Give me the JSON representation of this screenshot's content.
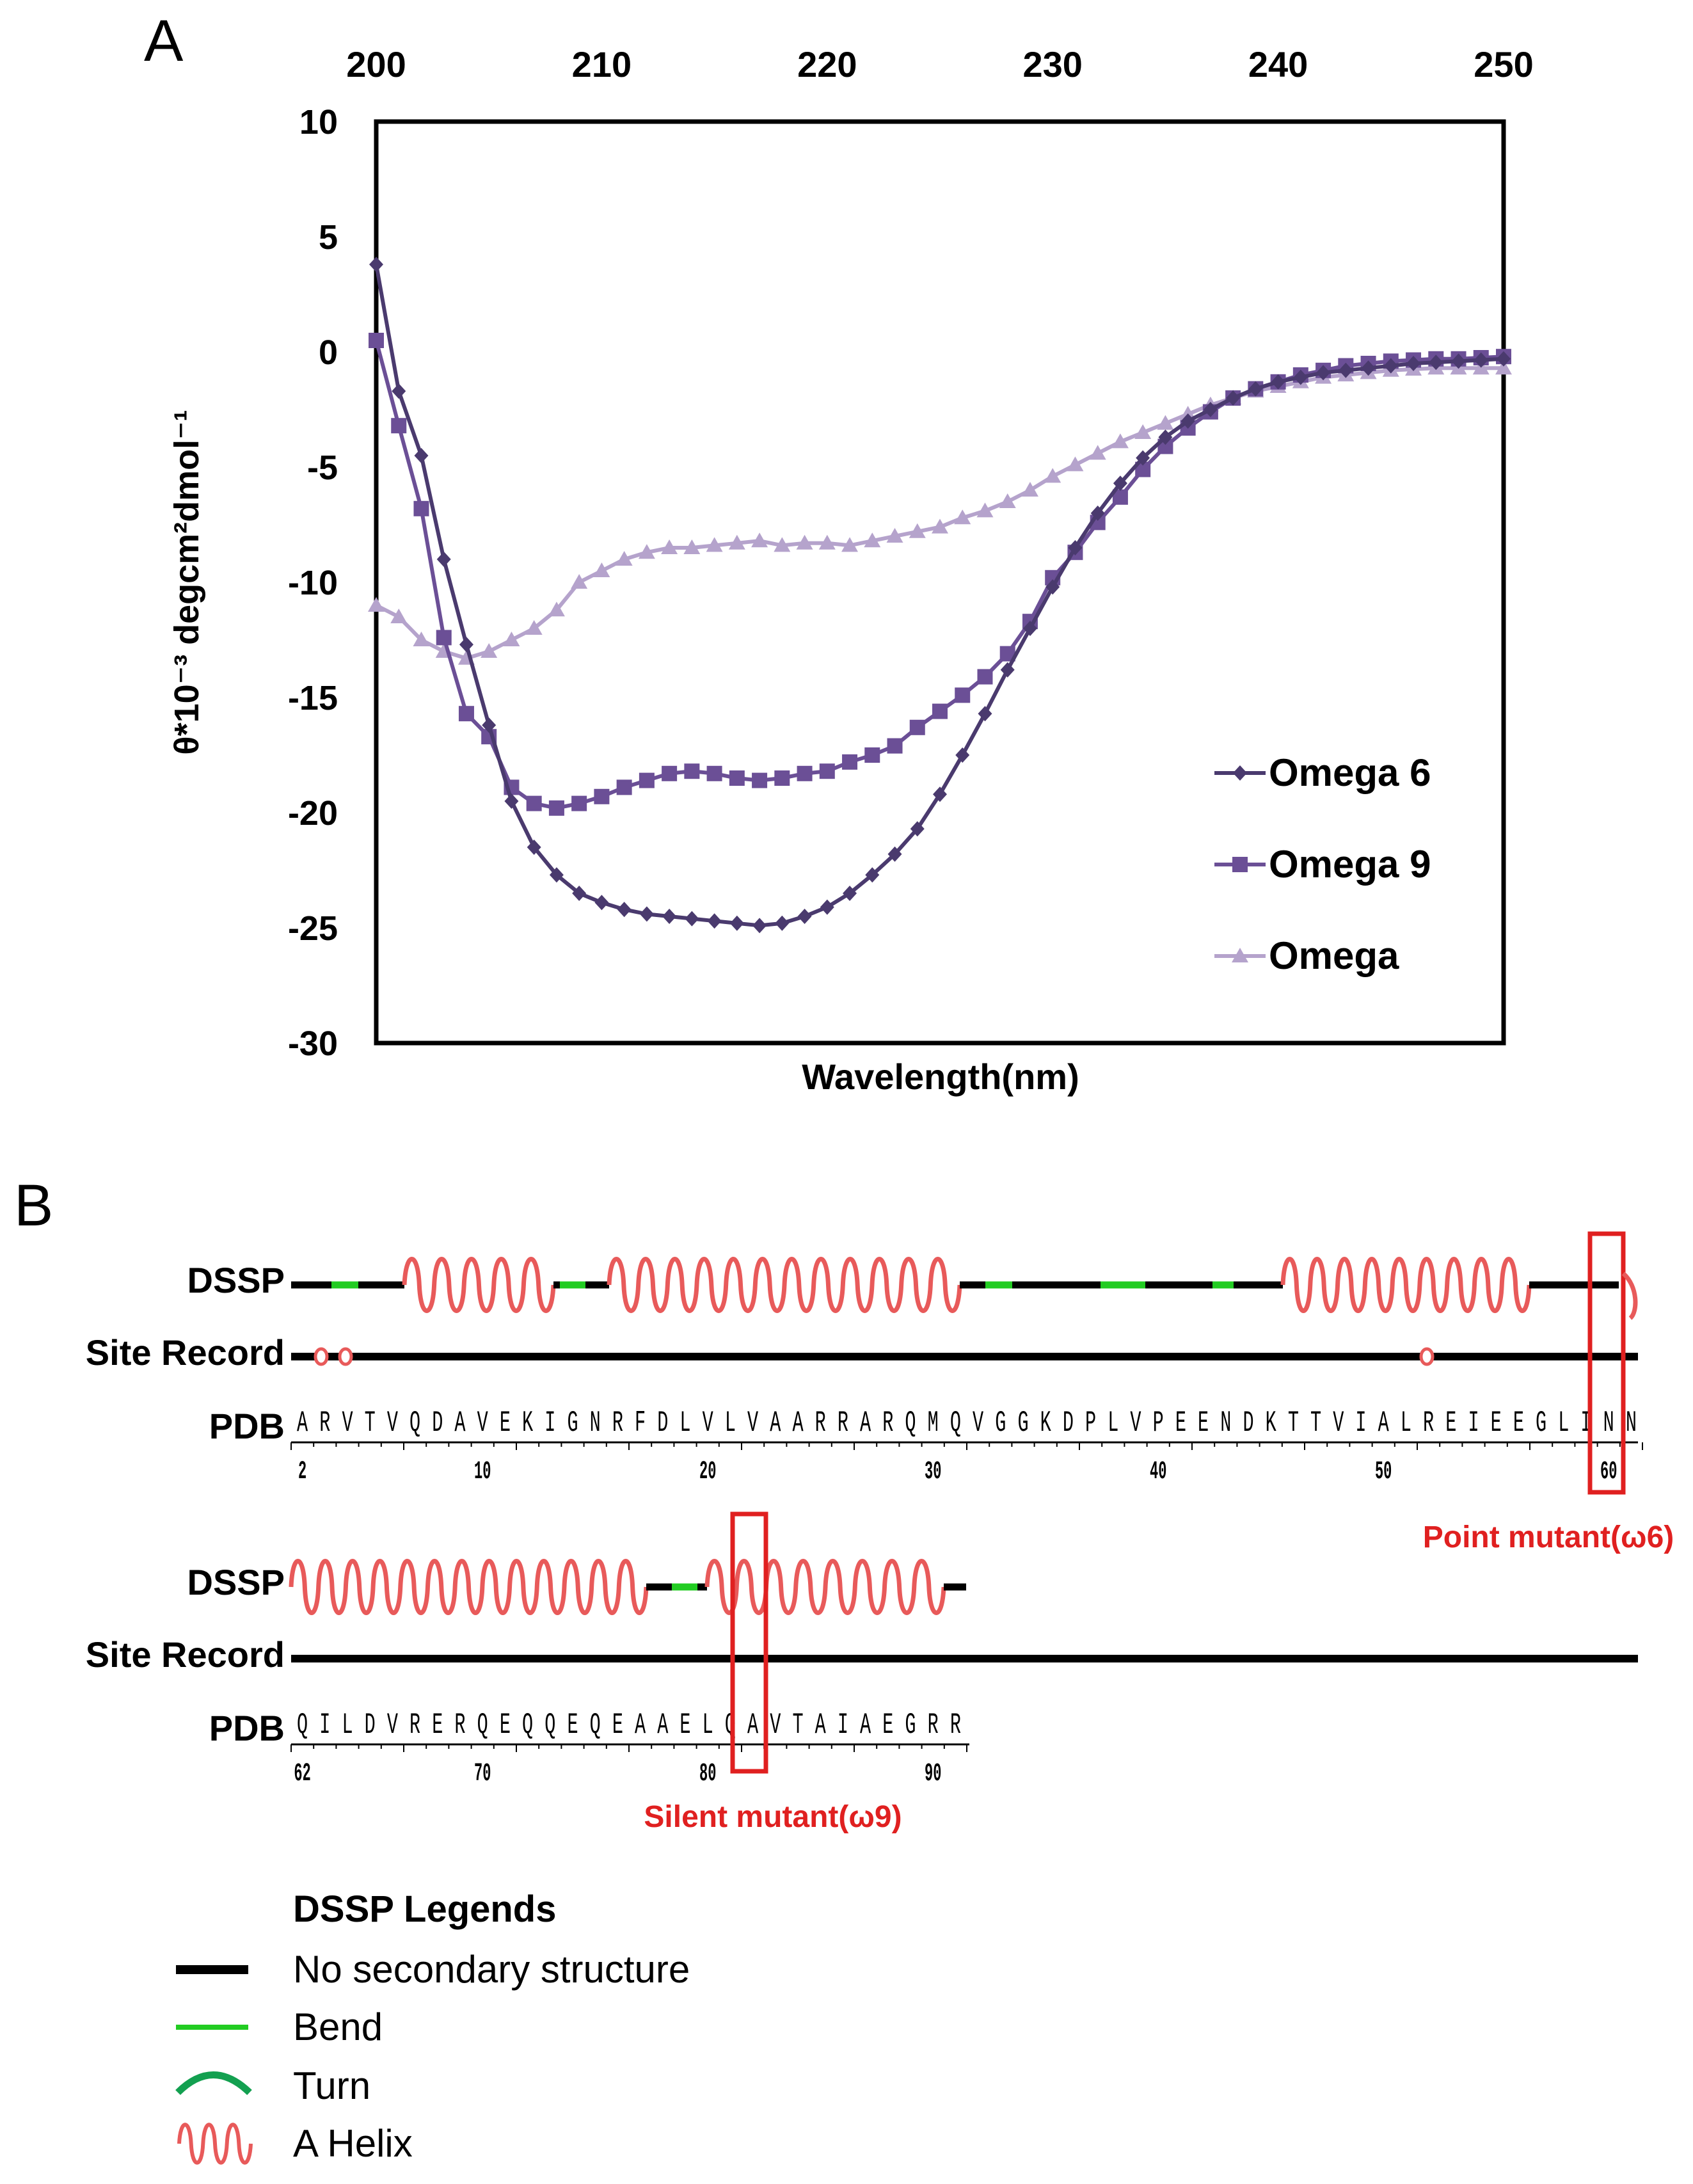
{
  "panel_a": {
    "label": "A"
  },
  "panel_b": {
    "label": "B"
  },
  "chart_data": {
    "type": "line",
    "xlabel": "Wavelength(nm)",
    "ylabel": "θ*10⁻³ degcm²dmol⁻¹",
    "xlim": [
      200,
      250
    ],
    "ylim": [
      -30,
      10
    ],
    "xticks": [
      200,
      210,
      220,
      230,
      240,
      250
    ],
    "yticks": [
      10,
      5,
      0,
      -5,
      -10,
      -15,
      -20,
      -25,
      -30
    ],
    "grid": false,
    "legend_position": "lower-right",
    "series": [
      {
        "name": "Omega 6",
        "marker": "diamond",
        "color": "#4a3a6e",
        "x": [
          200,
          201,
          202,
          203,
          204,
          205,
          206,
          207,
          208,
          209,
          210,
          211,
          212,
          213,
          214,
          215,
          216,
          217,
          218,
          219,
          220,
          221,
          222,
          223,
          224,
          225,
          226,
          227,
          228,
          229,
          230,
          231,
          232,
          233,
          234,
          235,
          236,
          237,
          238,
          239,
          240,
          241,
          242,
          243,
          244,
          245,
          246,
          247,
          248,
          249,
          250
        ],
        "values": [
          3.8,
          -1.7,
          -4.5,
          -9.0,
          -12.7,
          -16.2,
          -19.5,
          -21.5,
          -22.7,
          -23.5,
          -23.9,
          -24.2,
          -24.4,
          -24.5,
          -24.6,
          -24.7,
          -24.8,
          -24.9,
          -24.8,
          -24.5,
          -24.1,
          -23.5,
          -22.7,
          -21.8,
          -20.7,
          -19.2,
          -17.5,
          -15.7,
          -13.8,
          -12.0,
          -10.2,
          -8.5,
          -7.0,
          -5.7,
          -4.6,
          -3.7,
          -3.0,
          -2.5,
          -2.0,
          -1.6,
          -1.3,
          -1.1,
          -0.9,
          -0.8,
          -0.7,
          -0.6,
          -0.5,
          -0.45,
          -0.4,
          -0.35,
          -0.3
        ]
      },
      {
        "name": "Omega 9",
        "marker": "square",
        "color": "#6b4f96",
        "x": [
          200,
          201,
          202,
          203,
          204,
          205,
          206,
          207,
          208,
          209,
          210,
          211,
          212,
          213,
          214,
          215,
          216,
          217,
          218,
          219,
          220,
          221,
          222,
          223,
          224,
          225,
          226,
          227,
          228,
          229,
          230,
          231,
          232,
          233,
          234,
          235,
          236,
          237,
          238,
          239,
          240,
          241,
          242,
          243,
          244,
          245,
          246,
          247,
          248,
          249,
          250
        ],
        "values": [
          0.5,
          -3.2,
          -6.8,
          -12.4,
          -15.7,
          -16.7,
          -18.9,
          -19.6,
          -19.8,
          -19.6,
          -19.3,
          -18.9,
          -18.6,
          -18.3,
          -18.2,
          -18.3,
          -18.5,
          -18.6,
          -18.5,
          -18.3,
          -18.2,
          -17.8,
          -17.5,
          -17.1,
          -16.3,
          -15.6,
          -14.9,
          -14.1,
          -13.1,
          -11.7,
          -9.8,
          -8.7,
          -7.4,
          -6.3,
          -5.1,
          -4.1,
          -3.3,
          -2.6,
          -2.0,
          -1.6,
          -1.3,
          -1.0,
          -0.8,
          -0.6,
          -0.5,
          -0.4,
          -0.35,
          -0.3,
          -0.3,
          -0.25,
          -0.2
        ]
      },
      {
        "name": "Omega",
        "marker": "triangle",
        "color": "#b5a3cc",
        "x": [
          200,
          201,
          202,
          203,
          204,
          205,
          206,
          207,
          208,
          209,
          210,
          211,
          212,
          213,
          214,
          215,
          216,
          217,
          218,
          219,
          220,
          221,
          222,
          223,
          224,
          225,
          226,
          227,
          228,
          229,
          230,
          231,
          232,
          233,
          234,
          235,
          236,
          237,
          238,
          239,
          240,
          241,
          242,
          243,
          244,
          245,
          246,
          247,
          248,
          249,
          250
        ],
        "values": [
          -11.0,
          -11.5,
          -12.5,
          -13.0,
          -13.3,
          -13.0,
          -12.5,
          -12.0,
          -11.2,
          -10.0,
          -9.5,
          -9.0,
          -8.7,
          -8.5,
          -8.5,
          -8.4,
          -8.3,
          -8.2,
          -8.4,
          -8.3,
          -8.3,
          -8.4,
          -8.2,
          -8.0,
          -7.8,
          -7.6,
          -7.2,
          -6.9,
          -6.5,
          -6.0,
          -5.4,
          -4.9,
          -4.4,
          -3.9,
          -3.5,
          -3.1,
          -2.7,
          -2.3,
          -2.0,
          -1.7,
          -1.5,
          -1.3,
          -1.1,
          -1.0,
          -0.9,
          -0.8,
          -0.75,
          -0.7,
          -0.7,
          -0.7,
          -0.7
        ]
      }
    ]
  },
  "dssp": {
    "row_labels": {
      "dssp": "DSSP",
      "site_record": "Site Record",
      "pdb": "PDB"
    },
    "row1": {
      "sequence": "ARVTVQDAVEKIGNRFDLVLVAARRARQMQVGGKDPLVPEENDKTTVIALREIEEGLINN",
      "start": 2,
      "ticks": [
        "2",
        "10",
        "20",
        "30",
        "40",
        "50",
        "60"
      ]
    },
    "row2": {
      "sequence": "QILDVRERQEQQEQEAAELQAVTAIAEGRR",
      "start": 62,
      "ticks": [
        "62",
        "70",
        "80",
        "90"
      ]
    },
    "annotations": {
      "point_mutant": "Point mutant(ω6)",
      "silent_mutant": "Silent mutant(ω9)"
    },
    "colors": {
      "helix": "#e85a5a",
      "bend": "#22cc22",
      "turn": "#13a050",
      "none": "#000000",
      "highlight": "#e02020"
    }
  },
  "legend": {
    "title": "DSSP Legends",
    "items": [
      {
        "icon": "black-line-icon",
        "label": "No secondary structure"
      },
      {
        "icon": "green-line-icon",
        "label": "Bend"
      },
      {
        "icon": "turn-arc-icon",
        "label": "Turn"
      },
      {
        "icon": "helix-wave-icon",
        "label": "A Helix"
      }
    ]
  }
}
